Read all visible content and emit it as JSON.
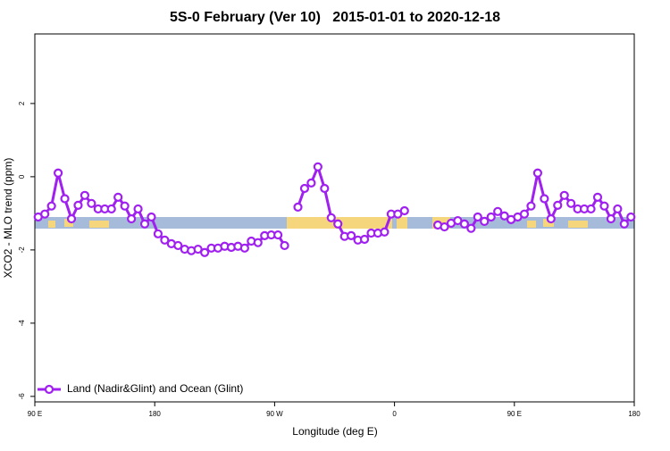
{
  "chart_data": {
    "type": "line",
    "title": "5S-0 February (Ver 10)   2015-01-01 to 2020-12-18",
    "x_label": "Longitude (deg E)",
    "y_label": "XCO2 - MLO trend (ppm)",
    "xlim": [
      90,
      540
    ],
    "ylim": [
      -6.15,
      3.9
    ],
    "xticks": [
      {
        "value": 90,
        "label": "90 E"
      },
      180,
      {
        "value": 270,
        "label": "90 W"
      },
      {
        "value": 360,
        "label": "0"
      },
      {
        "value": 450,
        "label": "90 E"
      },
      {
        "value": 540,
        "label": "180"
      }
    ],
    "yticks": [
      -6,
      -4,
      -2,
      0,
      2
    ],
    "x": [
      92.5,
      97.5,
      102.5,
      107.5,
      112.5,
      117.5,
      122.5,
      127.5,
      132.5,
      137.5,
      142.5,
      147.5,
      152.5,
      157.5,
      162.5,
      167.5,
      172.5,
      177.5,
      182.5,
      187.5,
      192.5,
      197.5,
      202.5,
      207.5,
      212.5,
      217.5,
      222.5,
      227.5,
      232.5,
      237.5,
      242.5,
      247.5,
      252.5,
      257.5,
      262.5,
      267.5,
      272.5,
      277.5,
      282.5,
      287.5,
      292.5,
      297.5,
      302.5,
      307.5,
      312.5,
      317.5,
      322.5,
      327.5,
      332.5,
      337.5,
      342.5,
      347.5,
      352.5,
      357.5,
      362.5,
      367.5,
      372.5,
      377.5,
      382.5,
      387.5,
      392.5,
      397.5,
      402.5,
      407.5,
      412.5,
      417.5,
      422.5,
      427.5,
      432.5,
      437.5,
      442.5,
      447.5,
      452.5,
      457.5,
      462.5,
      467.5,
      472.5,
      477.5,
      482.5,
      487.5,
      492.5,
      497.5,
      502.5,
      507.5,
      512.5,
      517.5,
      522.5,
      527.5,
      532.5,
      537.5
    ],
    "series": [
      {
        "name": "Land (Nadir&Glint) and Ocean (Glint)",
        "color": "#a020f0",
        "values": [
          -1.1,
          -1.02,
          -0.8,
          0.1,
          -0.6,
          -1.15,
          -0.78,
          -0.51,
          -0.73,
          -0.88,
          -0.88,
          -0.88,
          -0.56,
          -0.8,
          -1.15,
          -0.88,
          -1.29,
          -1.1,
          -1.56,
          -1.73,
          -1.83,
          -1.88,
          -1.98,
          -2.02,
          -1.98,
          -2.07,
          -1.95,
          -1.95,
          -1.9,
          -1.93,
          -1.9,
          -1.95,
          -1.76,
          -1.8,
          -1.61,
          -1.59,
          -1.59,
          -1.88,
          null,
          -0.83,
          -0.32,
          -0.17,
          0.27,
          -0.32,
          -1.12,
          -1.29,
          -1.63,
          -1.61,
          -1.73,
          -1.71,
          -1.54,
          -1.54,
          -1.51,
          -1.02,
          -1.02,
          -0.93,
          null,
          null,
          null,
          null,
          -1.32,
          -1.37,
          -1.27,
          -1.2,
          -1.29,
          -1.41,
          -1.1,
          -1.22,
          -1.1,
          -0.95,
          -1.07,
          -1.17,
          -1.1,
          -1.02,
          -0.8,
          0.1,
          -0.6,
          -1.15,
          -0.78,
          -0.51,
          -0.73,
          -0.88,
          -0.88,
          -0.88,
          -0.56,
          -0.8,
          -1.15,
          -0.88,
          -1.29,
          -1.1
        ]
      }
    ]
  }
}
